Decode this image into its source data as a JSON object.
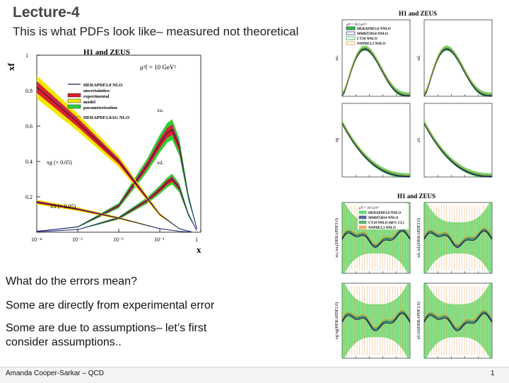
{
  "slide": {
    "title": "Lecture-4",
    "subtitle": "This is what PDFs look like– measured not theoretical",
    "bullets": [
      "What do the errors mean?",
      "Some are directly from experimental error",
      "Some are due to assumptions– let’s first",
      "consider assumptions.."
    ],
    "author": "Amanda Cooper-Sarkar – QCD",
    "page_number": "1"
  },
  "colors": {
    "experimental": "#e0202a",
    "model": "#f2e800",
    "parameterisation": "#2ccf3a",
    "nlo_line": "#1a1a3a",
    "ag_line": "#3a3aff",
    "mmht": "#1c2a7a",
    "ct": "#1f9a3f",
    "nnpdf": "#e88b2e"
  },
  "chart_data": [
    {
      "type": "line",
      "title": "H1 and ZEUS",
      "scale_text": "μ²f = 10 GeV²",
      "xlabel": "x",
      "ylabel": "xf",
      "xscale": "log",
      "xlim": [
        0.0001,
        1
      ],
      "ylim": [
        0,
        1
      ],
      "xticks": [
        "10⁻⁴",
        "10⁻³",
        "10⁻²",
        "10⁻¹",
        "1"
      ],
      "yticks": [
        "0.2",
        "0.4",
        "0.6",
        "0.8",
        "1"
      ],
      "legend": [
        "HERAPDF2.0 NLO",
        "uncertainties:",
        "experimental",
        "model",
        "parameterisation",
        "HERAPDF2.0AG NLO"
      ],
      "curve_labels": [
        "xuᵥ",
        "xdᵥ",
        "xg (× 0.05)",
        "xS (× 0.05)"
      ],
      "series": [
        {
          "name": "xu_v",
          "x": [
            0.0001,
            0.001,
            0.01,
            0.05,
            0.1,
            0.15,
            0.2,
            0.3,
            0.5,
            0.8
          ],
          "values": [
            0.005,
            0.03,
            0.15,
            0.38,
            0.5,
            0.56,
            0.58,
            0.48,
            0.2,
            0.02
          ]
        },
        {
          "name": "xd_v",
          "x": [
            0.0001,
            0.001,
            0.01,
            0.05,
            0.1,
            0.15,
            0.2,
            0.3,
            0.5,
            0.8
          ],
          "values": [
            0.003,
            0.015,
            0.08,
            0.18,
            0.24,
            0.28,
            0.3,
            0.25,
            0.1,
            0.01
          ]
        },
        {
          "name": "xg (x0.05)",
          "x": [
            0.0001,
            0.001,
            0.01,
            0.1,
            0.3,
            0.6
          ],
          "values": [
            0.82,
            0.62,
            0.4,
            0.1,
            0.02,
            0.002
          ]
        },
        {
          "name": "xS (x0.05)",
          "x": [
            0.0001,
            0.001,
            0.01,
            0.1,
            0.3,
            0.6
          ],
          "values": [
            0.17,
            0.13,
            0.08,
            0.02,
            0.005,
            0.001
          ]
        }
      ]
    },
    {
      "type": "line",
      "title": "H1 and ZEUS",
      "scale_text": "μ²f = 10 GeV²",
      "panels": [
        "xuᵥ",
        "xdᵥ",
        "xg",
        "xS"
      ],
      "legend": [
        "HERAPDF2.0 NNLO",
        "MMHT2014 NNLO",
        "CT10 NNLO",
        "NNPDF2.3 NNLO"
      ]
    },
    {
      "type": "line",
      "title": "H1 and ZEUS",
      "scale_text": "μ²f = 10 GeV²",
      "panels": [
        "xuᵥ/xuᵥ(HERAPDF2.0)",
        "xdᵥ/xdᵥ(HERAPDF2.0)",
        "xg/xg(HERAPDF2.0)",
        "xS/xS(HERAPDF2.0)"
      ],
      "legend": [
        "HERAPDF2.0 NNLO",
        "MMHT2014 NNLO",
        "CT10 NNLO (68% CL)",
        "NNPDF2.3 NNLO"
      ]
    }
  ]
}
